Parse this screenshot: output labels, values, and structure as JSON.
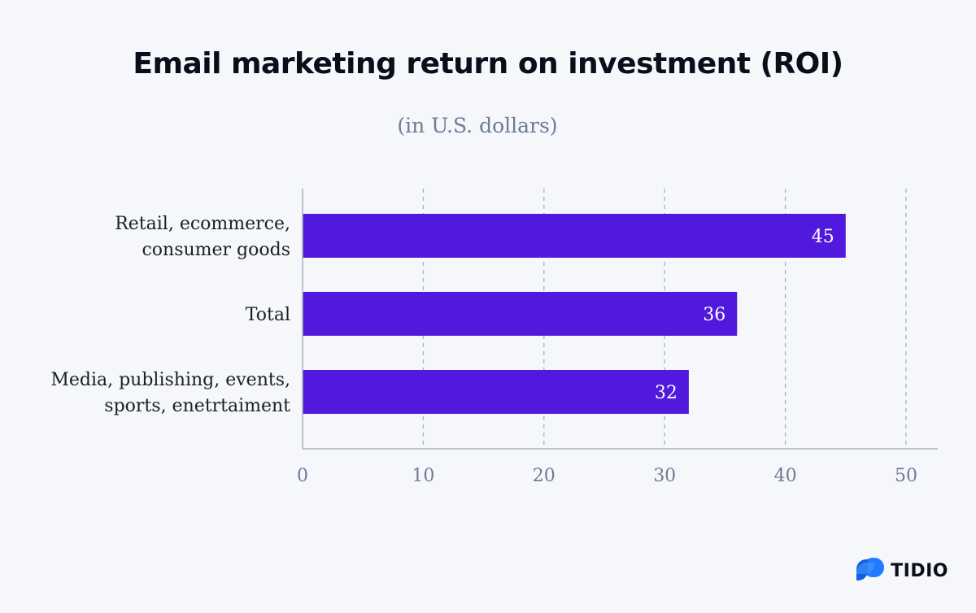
{
  "chart_data": {
    "type": "bar",
    "orientation": "horizontal",
    "title": "Email marketing return on investment (ROI)",
    "subtitle": "(in U.S. dollars)",
    "categories": [
      [
        "Retail, ecommerce,",
        "consumer goods"
      ],
      [
        "Total"
      ],
      [
        "Media, publishing, events,",
        "sports, enetrtaiment"
      ]
    ],
    "values": [
      45,
      36,
      32
    ],
    "value_labels": [
      "45",
      "36",
      "32"
    ],
    "xlim": [
      0,
      50
    ],
    "xticks": [
      0,
      10,
      20,
      30,
      40,
      50
    ],
    "xtick_labels": [
      "0",
      "10",
      "20",
      "30",
      "40",
      "50"
    ],
    "grid": "vertical-dashed",
    "bar_color": "#5119dd",
    "grid_color": "#a9b1c4",
    "axis_color": "#a9b1c4"
  },
  "logo": {
    "text": "TIDIO",
    "icon": "tidio-bubble-icon",
    "color": "#1f7cff"
  }
}
